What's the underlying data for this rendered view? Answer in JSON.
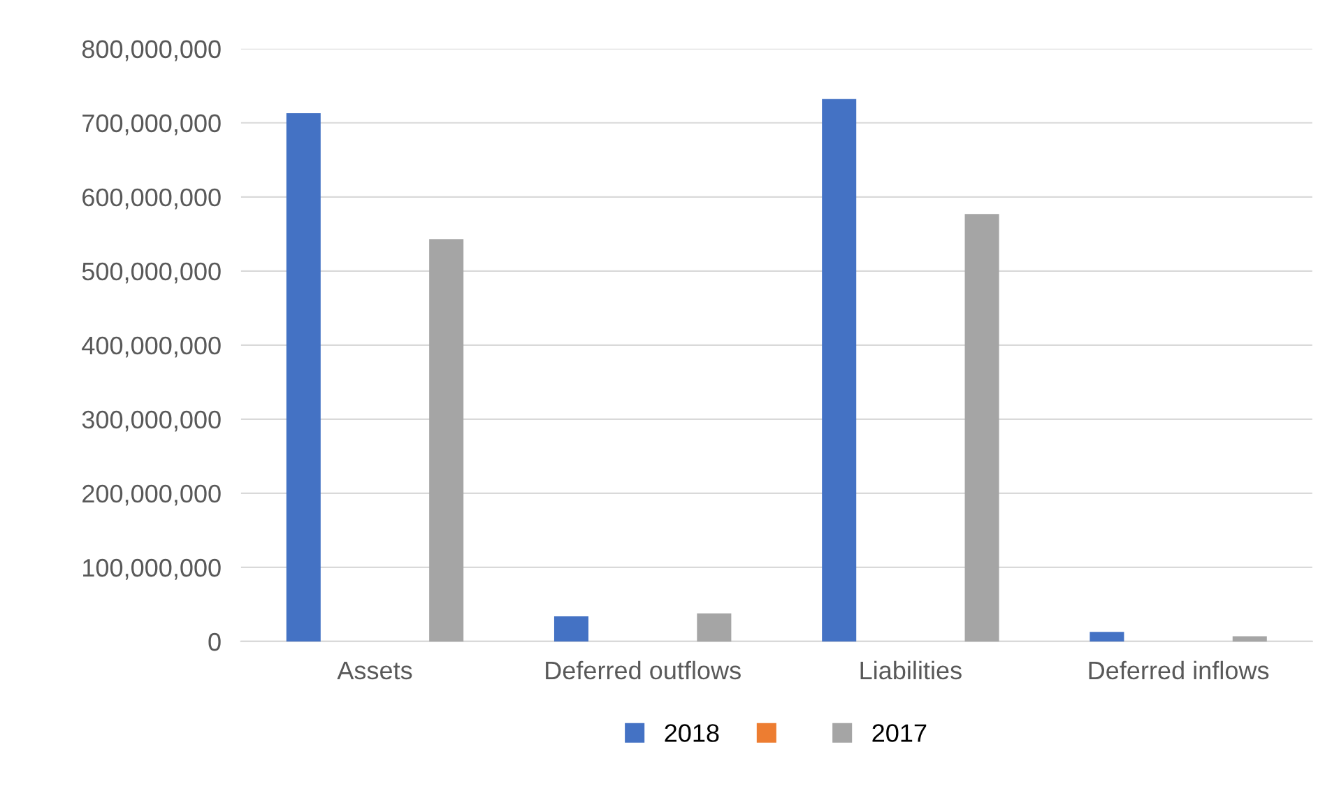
{
  "chart_data": {
    "type": "bar",
    "categories": [
      "Assets",
      "Deferred outflows",
      "Liabilities",
      "Deferred inflows"
    ],
    "series": [
      {
        "name": "2018",
        "color": "#4472c4",
        "values": [
          713000000,
          34000000,
          732000000,
          13000000
        ]
      },
      {
        "name": null,
        "color": "#ed7d31",
        "values": [
          null,
          null,
          null,
          null
        ]
      },
      {
        "name": "2017",
        "color": "#a5a5a5",
        "values": [
          543000000,
          38000000,
          577000000,
          7000000
        ]
      }
    ],
    "ylim": [
      0,
      800000000
    ],
    "yticks": [
      {
        "value": 0,
        "label": "0"
      },
      {
        "value": 100000000,
        "label": "100,000,000"
      },
      {
        "value": 200000000,
        "label": "200,000,000"
      },
      {
        "value": 300000000,
        "label": "300,000,000"
      },
      {
        "value": 400000000,
        "label": "400,000,000"
      },
      {
        "value": 500000000,
        "label": "500,000,000"
      },
      {
        "value": 600000000,
        "label": "600,000,000"
      },
      {
        "value": 700000000,
        "label": "700,000,000"
      },
      {
        "value": 800000000,
        "label": "800,000,000"
      }
    ],
    "grid": "y",
    "legend": "bottom"
  }
}
